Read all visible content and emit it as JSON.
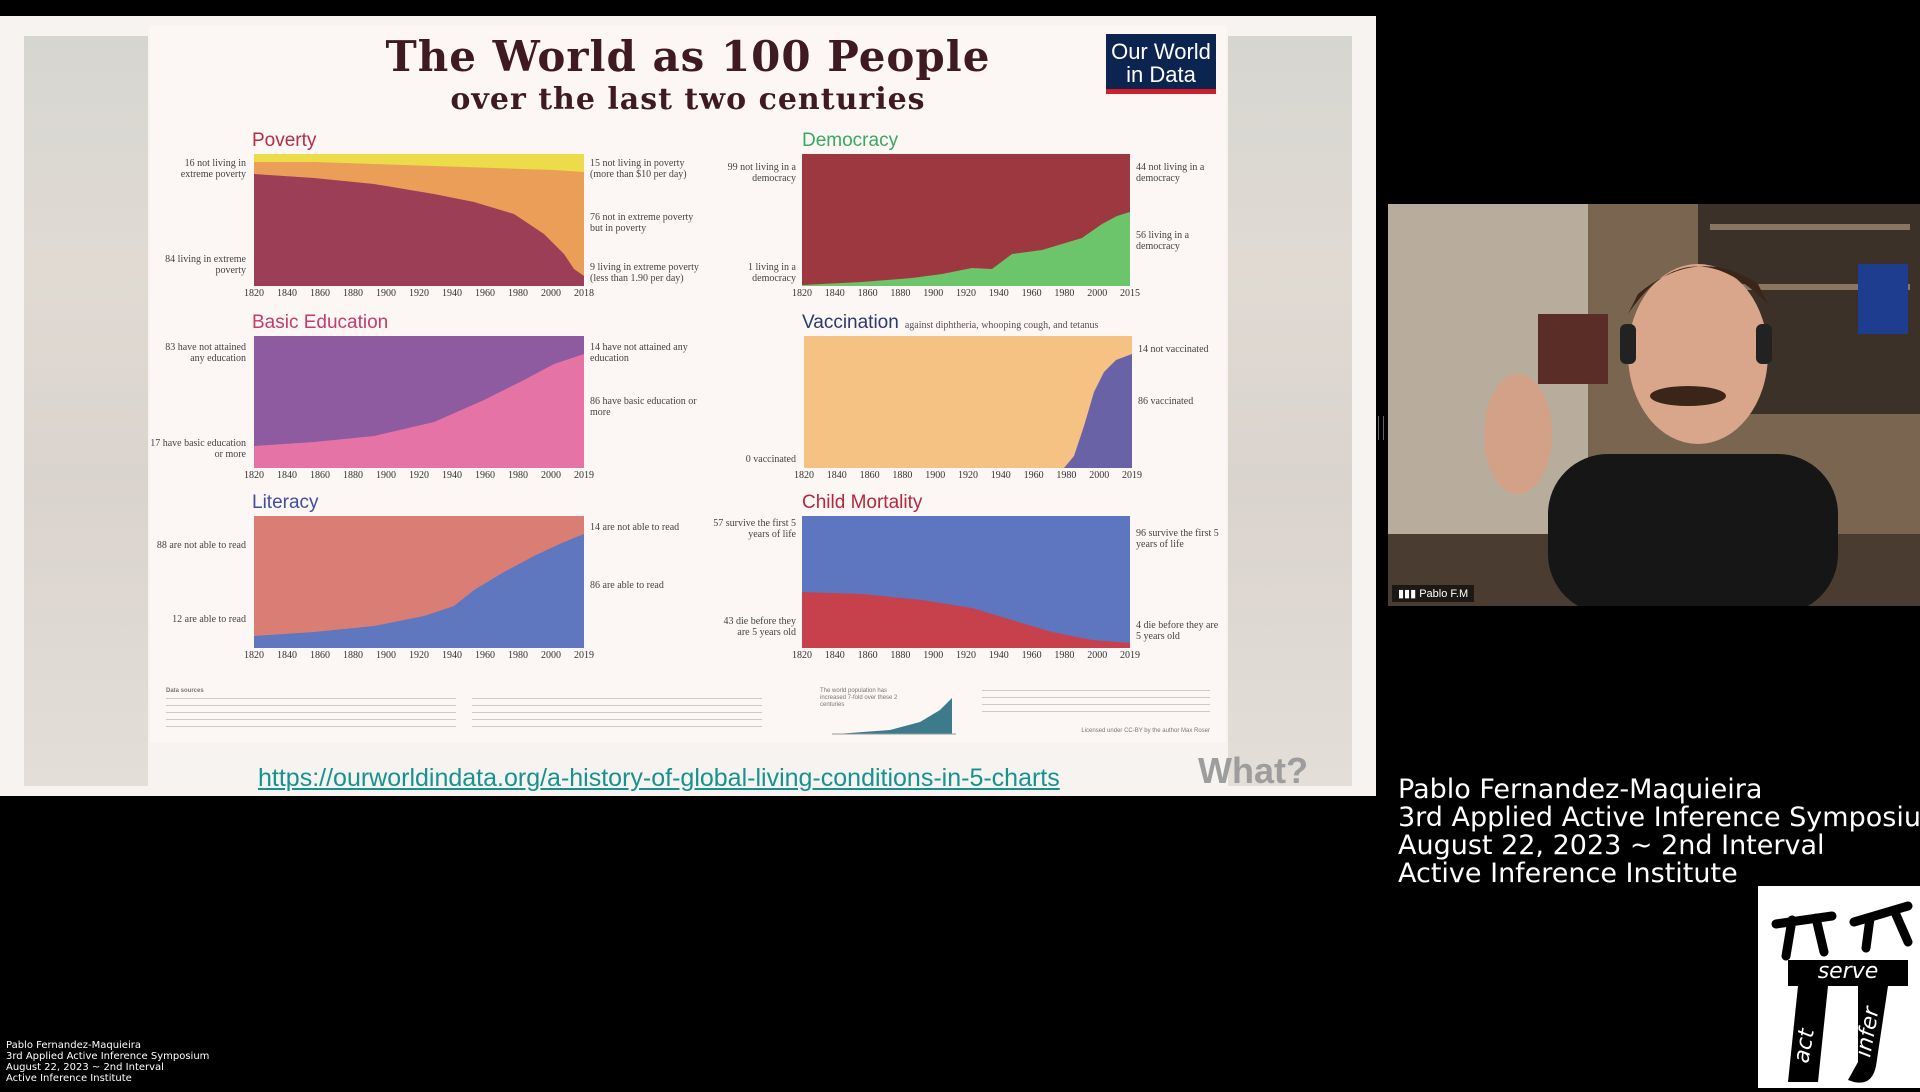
{
  "slide": {
    "title": "The World as 100 People",
    "subtitle": "over the last two centuries",
    "logo_line1": "Our World",
    "logo_line2": "in Data",
    "url": "https://ourworldindata.org/a-history-of-global-living-conditions-in-5-charts",
    "stamp": "What?"
  },
  "panels": {
    "poverty": {
      "title": "Poverty",
      "axis": [
        "1820",
        "1840",
        "1860",
        "1880",
        "1900",
        "1920",
        "1940",
        "1960",
        "1980",
        "2000",
        "2018"
      ],
      "left_top": "16 not living in extreme poverty",
      "left_bottom": "84 living in extreme poverty",
      "right_1": "15 not living in poverty (more than $10 per day)",
      "right_2": "76 not in extreme poverty but in poverty",
      "right_3": "9 living in extreme poverty (less than 1.90 per day)"
    },
    "democracy": {
      "title": "Democracy",
      "axis": [
        "1820",
        "1840",
        "1860",
        "1880",
        "1900",
        "1920",
        "1940",
        "1960",
        "1980",
        "2000",
        "2015"
      ],
      "left_top": "99 not living in a democracy",
      "left_bottom": "1 living in a democracy",
      "right_1": "44 not living in a democracy",
      "right_2": "56 living in a democracy"
    },
    "education": {
      "title": "Basic Education",
      "axis": [
        "1820",
        "1840",
        "1860",
        "1880",
        "1900",
        "1920",
        "1940",
        "1960",
        "1980",
        "2000",
        "2019"
      ],
      "left_top": "83 have not attained any education",
      "left_bottom": "17 have basic education or more",
      "right_1": "14 have not attained any education",
      "right_2": "86 have basic education or more"
    },
    "vaccination": {
      "title": "Vaccination",
      "subtitle": "against diphtheria, whooping cough, and tetanus",
      "axis": [
        "1820",
        "1840",
        "1860",
        "1880",
        "1900",
        "1920",
        "1940",
        "1960",
        "1980",
        "2000",
        "2019"
      ],
      "left_bottom": "0 vaccinated",
      "right_1": "14 not vaccinated",
      "right_2": "86 vaccinated"
    },
    "literacy": {
      "title": "Literacy",
      "axis": [
        "1820",
        "1840",
        "1860",
        "1880",
        "1900",
        "1920",
        "1940",
        "1960",
        "1980",
        "2000",
        "2019"
      ],
      "left_top": "88 are not able to read",
      "left_bottom": "12 are able to read",
      "right_1": "14 are not able to read",
      "right_2": "86 are able to read"
    },
    "mortality": {
      "title": "Child Mortality",
      "axis": [
        "1820",
        "1840",
        "1860",
        "1880",
        "1900",
        "1920",
        "1940",
        "1960",
        "1980",
        "2000",
        "2019"
      ],
      "left_top": "57 survive the first 5 years of life",
      "left_bottom": "43 die before they are 5 years old",
      "right_1": "96 survive the first 5 years of life",
      "right_2": "4 die before they are 5 years old"
    }
  },
  "footer": {
    "sources_heading": "Data sources",
    "population_note": "The world population has increased 7-fold over these 2 centuries",
    "license": "Licensed under CC-BY by the author Max Roser"
  },
  "colors": {
    "poverty_extreme": "#9d3e57",
    "poverty_mid": "#eb9e58",
    "poverty_top": "#eddc4a",
    "democracy_no": "#9e3840",
    "democracy_yes": "#6cc56a",
    "edu_none": "#8e5ba1",
    "edu_basic": "#e573a5",
    "vacc_no": "#f5c283",
    "vacc_yes": "#6a62a7",
    "lit_no": "#da7e75",
    "lit_yes": "#5e77bf",
    "mort_survive": "#5e76c0",
    "mort_die": "#c7414d",
    "url_color": "#17938f"
  },
  "webcam": {
    "name_label": "Pablo F.M"
  },
  "info": {
    "line1": "Pablo Fernandez-Maquieira",
    "line2": "3rd Applied Active Inference Symposium",
    "line3": "August 22, 2023 ~ 2nd Interval",
    "line4": "Active Inference Institute"
  },
  "logo": {
    "word1": "serve",
    "word2": "act",
    "word3": "infer"
  }
}
